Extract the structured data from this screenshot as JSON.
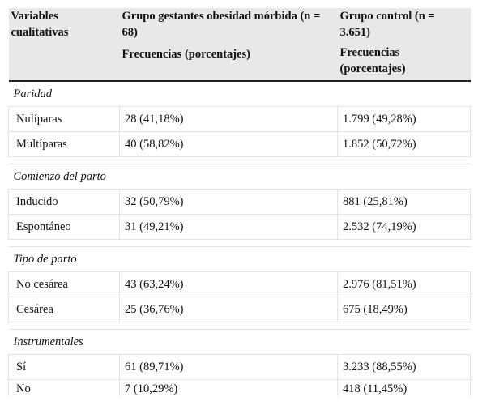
{
  "header": {
    "col1": "Variables cualitativas",
    "col2_title": "Grupo gestantes obesidad mórbida (n = 68)",
    "col2_sub": "Frecuencias (porcentajes)",
    "col3_title": "Grupo control (n = 3.651)",
    "col3_sub": "Frecuencias (porcentajes)"
  },
  "groups": [
    {
      "title": "Paridad",
      "rows": [
        {
          "label": "Nulíparas",
          "obese": "28 (41,18%)",
          "control": "1.799 (49,28%)"
        },
        {
          "label": "Multíparas",
          "obese": "40 (58,82%)",
          "control": "1.852 (50,72%)"
        }
      ]
    },
    {
      "title": "Comienzo del parto",
      "rows": [
        {
          "label": "Inducido",
          "obese": "32 (50,79%)",
          "control": "881 (25,81%)"
        },
        {
          "label": "Espontáneo",
          "obese": "31 (49,21%)",
          "control": "2.532 (74,19%)"
        }
      ]
    },
    {
      "title": "Tipo de parto",
      "rows": [
        {
          "label": "No cesárea",
          "obese": "43 (63,24%)",
          "control": "2.976 (81,51%)"
        },
        {
          "label": "Cesárea",
          "obese": "25 (36,76%)",
          "control": "675 (18,49%)"
        }
      ]
    },
    {
      "title": "Instrumentales",
      "rows": [
        {
          "label": "Sí",
          "obese": "61 (89,71%)",
          "control": "3.233 (88,55%)"
        },
        {
          "label": "No",
          "obese": "7 (10,29%)",
          "control": "418 (11,45%)"
        }
      ]
    }
  ]
}
